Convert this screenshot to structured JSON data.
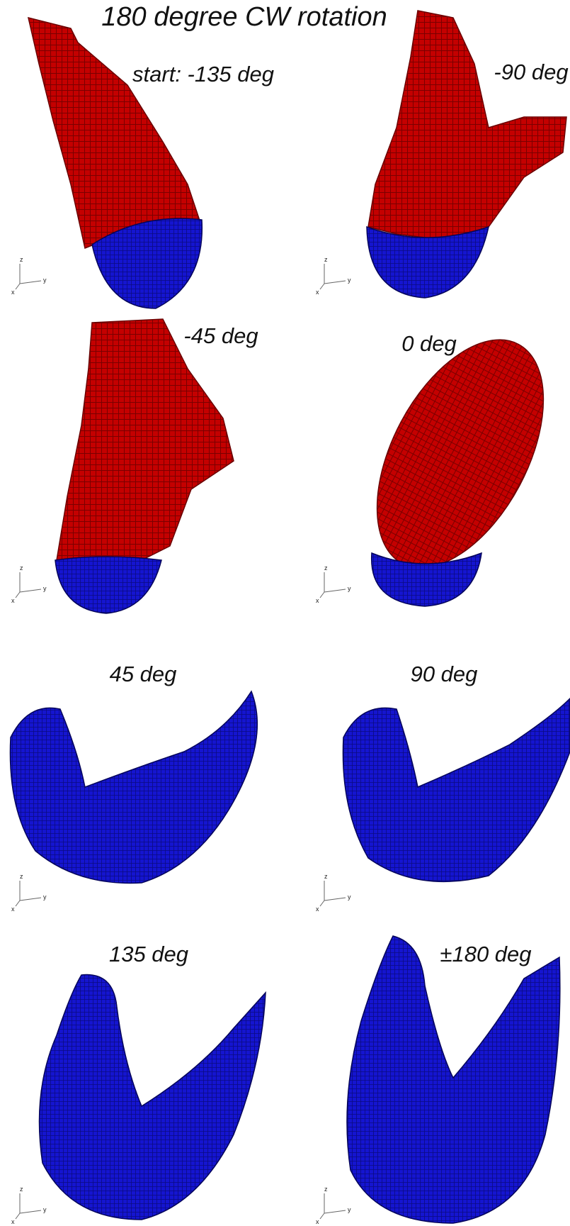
{
  "title": "180 degree CW rotation",
  "panels": [
    {
      "label": "start: -135 deg",
      "axes": [
        "z",
        "y",
        "x"
      ]
    },
    {
      "label": "-90 deg",
      "axes": [
        "z",
        "y",
        "x"
      ]
    },
    {
      "label": "-45 deg",
      "axes": [
        "z",
        "y",
        "x"
      ]
    },
    {
      "label": "0 deg",
      "axes": [
        "z",
        "y",
        "x"
      ]
    },
    {
      "label": "45 deg",
      "axes": [
        "z",
        "y",
        "x"
      ]
    },
    {
      "label": "90 deg",
      "axes": [
        "z",
        "y",
        "x"
      ]
    },
    {
      "label": "135 deg",
      "axes": [
        "z",
        "y",
        "x"
      ]
    },
    {
      "label": "±180 deg",
      "axes": [
        "z",
        "y",
        "x"
      ]
    }
  ]
}
